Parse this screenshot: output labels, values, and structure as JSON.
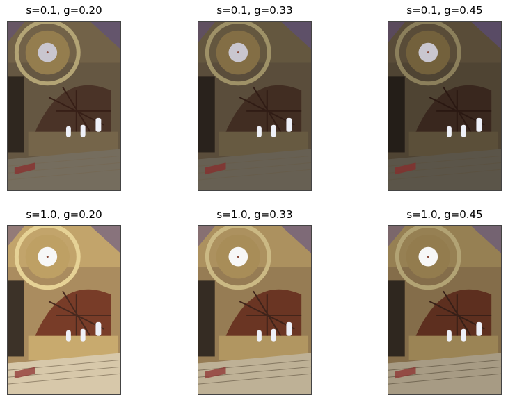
{
  "panels": [
    {
      "title": "s=0.1, g=0.20",
      "row": 0,
      "col": 0,
      "saturation": 0.1,
      "gamma": 0.2
    },
    {
      "title": "s=0.1, g=0.33",
      "row": 0,
      "col": 1,
      "saturation": 0.1,
      "gamma": 0.33
    },
    {
      "title": "s=0.1, g=0.45",
      "row": 0,
      "col": 2,
      "saturation": 0.1,
      "gamma": 0.45
    },
    {
      "title": "s=1.0, g=0.20",
      "row": 1,
      "col": 0,
      "saturation": 1.0,
      "gamma": 0.2
    },
    {
      "title": "s=1.0, g=0.33",
      "row": 1,
      "col": 1,
      "saturation": 1.0,
      "gamma": 0.33
    },
    {
      "title": "s=1.0, g=0.45",
      "row": 1,
      "col": 2,
      "saturation": 1.0,
      "gamma": 0.45
    }
  ]
}
